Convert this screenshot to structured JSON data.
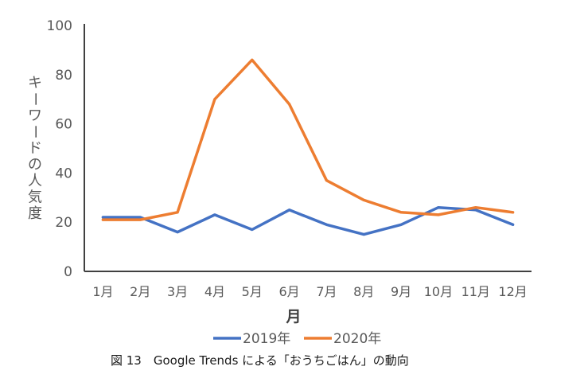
{
  "chart_data": {
    "type": "line",
    "title": "",
    "caption": "図 13　Google Trends による「おうちごはん」の動向",
    "xlabel": "月",
    "ylabel": "キーワードの人気度",
    "ylim": [
      0,
      100
    ],
    "yticks": [
      0,
      20,
      40,
      60,
      80,
      100
    ],
    "grid": false,
    "legend_position": "bottom",
    "categories": [
      "1月",
      "2月",
      "3月",
      "4月",
      "5月",
      "6月",
      "7月",
      "8月",
      "9月",
      "10月",
      "11月",
      "12月"
    ],
    "series": [
      {
        "name": "2019年",
        "color": "#4472C4",
        "values": [
          22,
          22,
          16,
          23,
          17,
          25,
          19,
          15,
          19,
          26,
          25,
          19
        ]
      },
      {
        "name": "2020年",
        "color": "#ED7D31",
        "values": [
          21,
          21,
          24,
          70,
          86,
          68,
          37,
          29,
          24,
          23,
          26,
          24
        ]
      }
    ]
  }
}
